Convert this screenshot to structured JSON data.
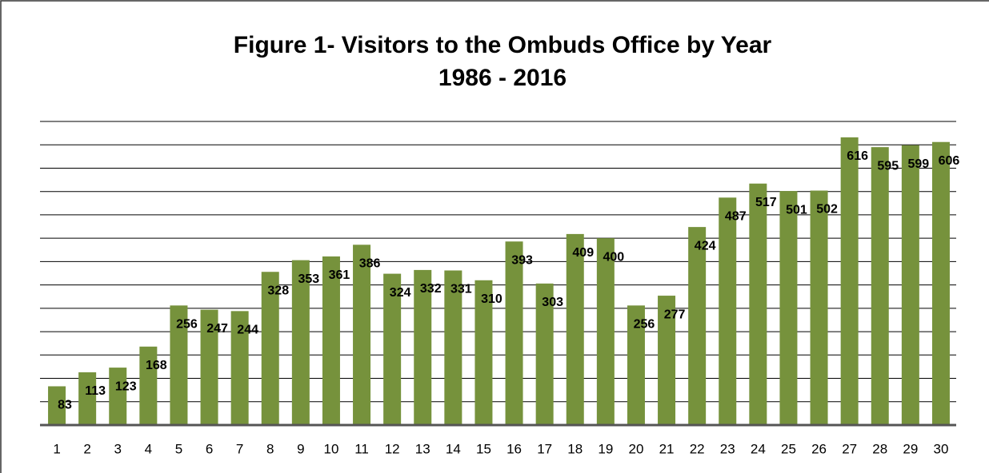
{
  "chart_data": {
    "type": "bar",
    "title": "Figure 1- Visitors to the Ombuds Office by Year",
    "subtitle": "1986 - 2016",
    "categories": [
      "1",
      "2",
      "3",
      "4",
      "5",
      "6",
      "7",
      "8",
      "9",
      "10",
      "11",
      "12",
      "13",
      "14",
      "15",
      "16",
      "17",
      "18",
      "19",
      "20",
      "21",
      "22",
      "23",
      "24",
      "25",
      "26",
      "27",
      "28",
      "29",
      "30"
    ],
    "values": [
      83,
      113,
      123,
      168,
      256,
      247,
      244,
      328,
      353,
      361,
      386,
      324,
      332,
      331,
      310,
      393,
      303,
      409,
      400,
      256,
      277,
      424,
      487,
      517,
      501,
      502,
      616,
      595,
      599,
      606
    ],
    "color": "#76923c",
    "ylim": [
      0,
      650
    ],
    "yticks": [
      0,
      50,
      100,
      150,
      200,
      250,
      300,
      350,
      400,
      450,
      500,
      550,
      600,
      650
    ],
    "grid": true
  }
}
